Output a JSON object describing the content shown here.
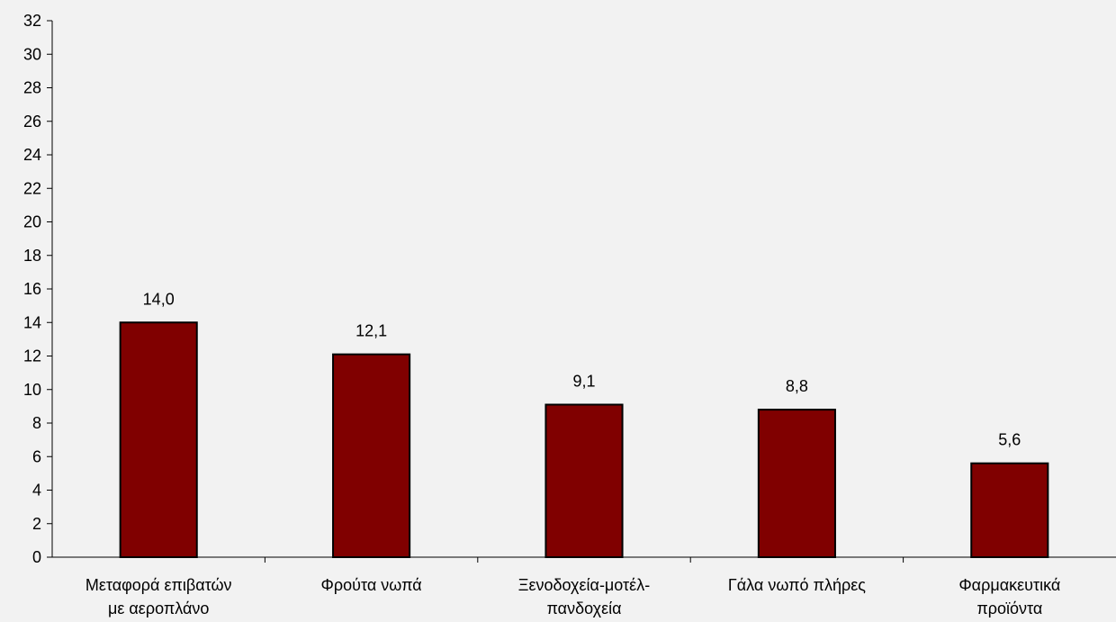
{
  "chart_data": {
    "type": "bar",
    "title": "",
    "xlabel": "",
    "ylabel": "",
    "categories": [
      [
        "Μεταφορά επιβατών",
        "με αεροπλάνο"
      ],
      [
        "Φρούτα νωπά"
      ],
      [
        "Ξενοδοχεία-μοτέλ-",
        "πανδοχεία"
      ],
      [
        "Γάλα νωπό πλήρες"
      ],
      [
        "Φαρμακευτικά",
        "προϊόντα"
      ]
    ],
    "values": [
      14.0,
      12.1,
      9.1,
      8.8,
      5.6
    ],
    "data_labels": [
      "14,0",
      "12,1",
      "9,1",
      "8,8",
      "5,6"
    ],
    "ylim": [
      0,
      32
    ],
    "yticks": [
      0,
      2,
      4,
      6,
      8,
      10,
      12,
      14,
      16,
      18,
      20,
      22,
      24,
      26,
      28,
      30,
      32
    ],
    "grid": false,
    "legend": "none",
    "colors": {
      "bar_fill": "#800000",
      "bar_stroke": "#000000",
      "axis": "#000000",
      "background": "#f2f2f2"
    }
  }
}
